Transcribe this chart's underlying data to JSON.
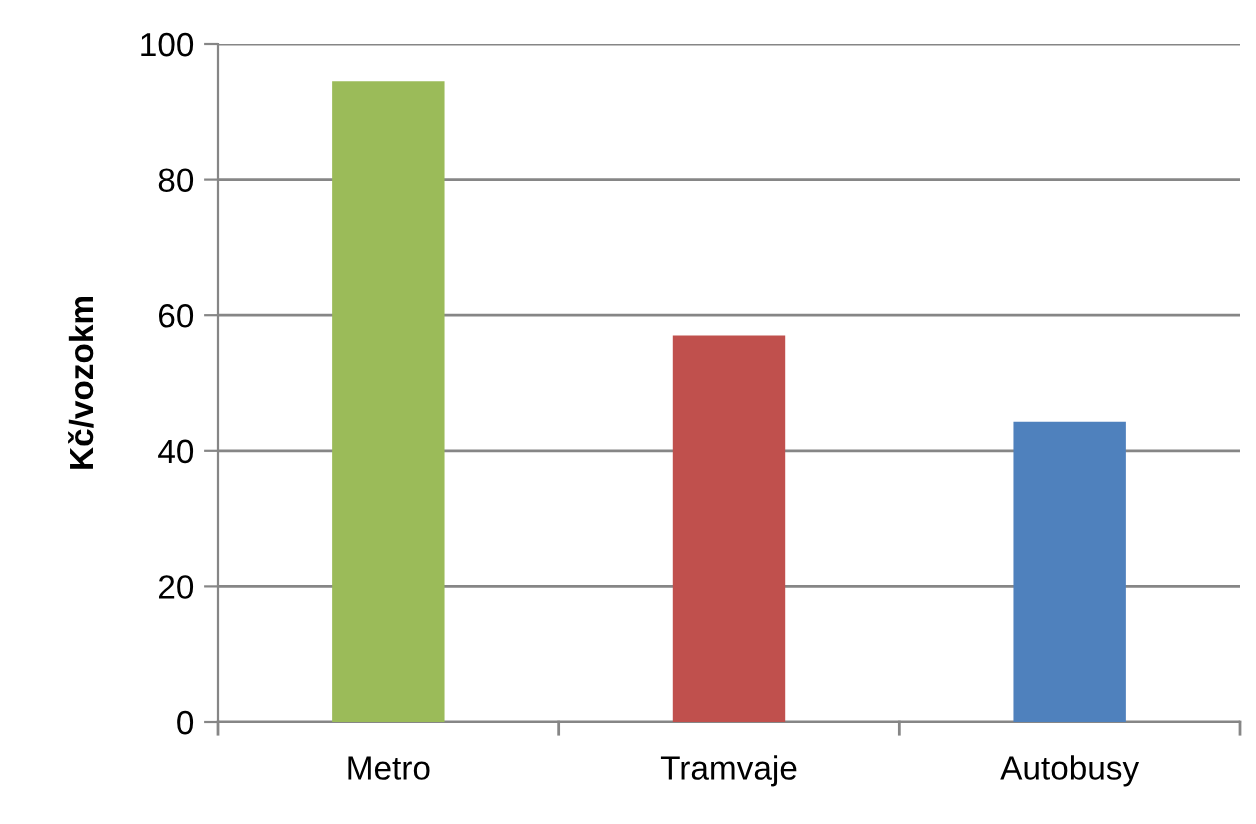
{
  "chart_data": {
    "type": "bar",
    "ylabel": "Kč/vozokm",
    "categories": [
      "Metro",
      "Tramvaje",
      "Autobusy"
    ],
    "values": [
      94.5,
      57,
      44.3
    ],
    "colors": [
      "#9bbb59",
      "#c0504d",
      "#4f81bd"
    ],
    "ylim": [
      0,
      100
    ],
    "yticks": [
      0,
      20,
      40,
      60,
      80,
      100
    ],
    "grid": "y",
    "legend": false
  }
}
